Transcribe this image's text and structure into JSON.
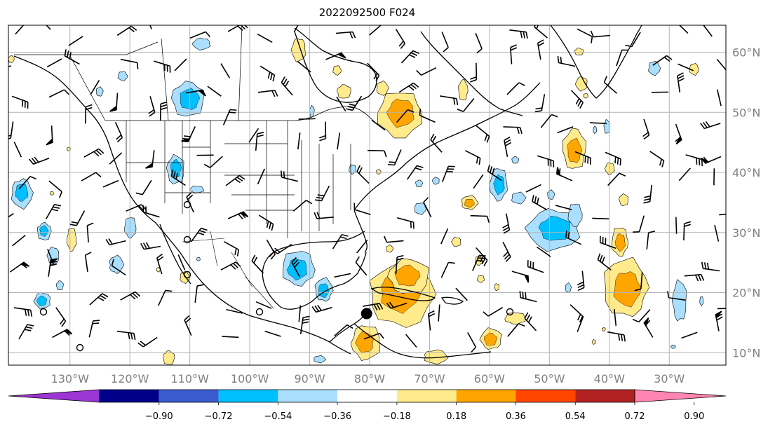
{
  "title": "2022092500 F024",
  "longitude_labels": [
    "130°W",
    "120°W",
    "110°W",
    "100°W",
    "90°W",
    "80°W",
    "70°W",
    "60°W",
    "50°W",
    "40°W",
    "30°W"
  ],
  "latitude_labels": [
    "60°N",
    "50°N",
    "40°N",
    "30°N",
    "20°N",
    "10°N"
  ],
  "colorbar": {
    "tick_labels": [
      "−0.90",
      "−0.72",
      "−0.54",
      "−0.36",
      "−0.18",
      "0.18",
      "0.36",
      "0.54",
      "0.72",
      "0.90"
    ],
    "colors": [
      "#9b35d3",
      "#00008b",
      "#3b5cd0",
      "#00bfff",
      "#aadfff",
      "#ffffff",
      "#ffea8c",
      "#ffa500",
      "#ff4500",
      "#b22222",
      "#ff85b0"
    ]
  },
  "marker": {
    "lon": -80.5,
    "lat": 16.5,
    "kind": "filled-circle"
  },
  "fill_colors": {
    "neg_light": "#aadfff",
    "neg_mid": "#00bfff",
    "pos_light": "#ffea8c",
    "pos_mid": "#ffa500"
  }
}
